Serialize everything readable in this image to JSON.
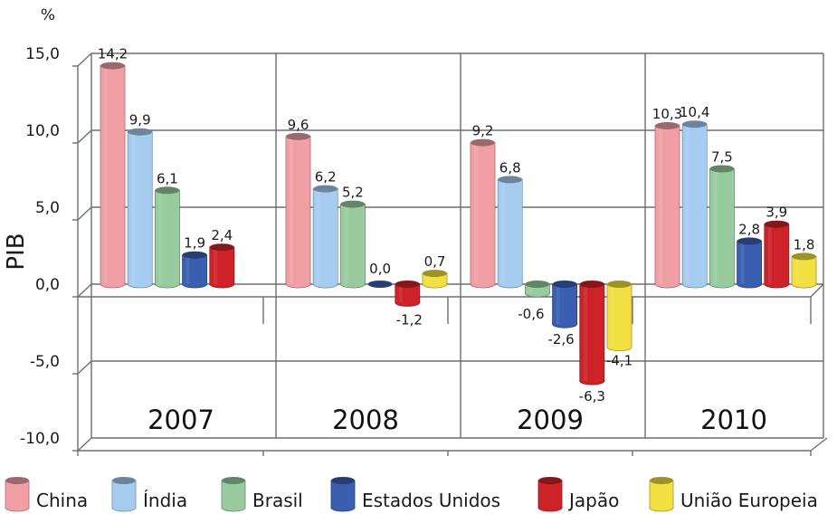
{
  "chart_data": {
    "type": "bar",
    "ylabel": "PIB",
    "unit": "%",
    "ylim": [
      -10,
      15
    ],
    "yticks": [
      "15,0",
      "10,0",
      "5,0",
      "0,0",
      "-5,0",
      "-10,0"
    ],
    "ytick_values": [
      15,
      10,
      5,
      0,
      -5,
      -10
    ],
    "categories": [
      "2007",
      "2008",
      "2009",
      "2010"
    ],
    "legend_position": "bottom",
    "series": [
      {
        "name": "China",
        "color": "#f0a0a4",
        "values": [
          14.2,
          9.6,
          9.2,
          10.3
        ],
        "labels": [
          "14,2",
          "9,6",
          "9,2",
          "10,3"
        ]
      },
      {
        "name": "Índia",
        "color": "#a6cdf0",
        "values": [
          9.9,
          6.2,
          6.8,
          10.4
        ],
        "labels": [
          "9,9",
          "6,2",
          "6,8",
          "10,4"
        ]
      },
      {
        "name": "Brasil",
        "color": "#98cc9e",
        "values": [
          6.1,
          5.2,
          -0.6,
          7.5
        ],
        "labels": [
          "6,1",
          "5,2",
          "-0,6",
          "7,5"
        ]
      },
      {
        "name": "Estados Unidos",
        "color": "#3a5fb0",
        "values": [
          1.9,
          0.0,
          -2.6,
          2.8
        ],
        "labels": [
          "1,9",
          "0,0",
          "-2,6",
          "2,8"
        ]
      },
      {
        "name": "Japão",
        "color": "#cc2228",
        "values": [
          2.4,
          -1.2,
          -6.3,
          3.9
        ],
        "labels": [
          "2,4",
          "-1,2",
          "-6,3",
          "3,9"
        ]
      },
      {
        "name": "União Europeia",
        "color": "#f2e040",
        "values": [
          null,
          0.7,
          -4.1,
          1.8
        ],
        "labels": [
          "",
          "0,7",
          "-4,1",
          "1,8"
        ]
      }
    ]
  }
}
